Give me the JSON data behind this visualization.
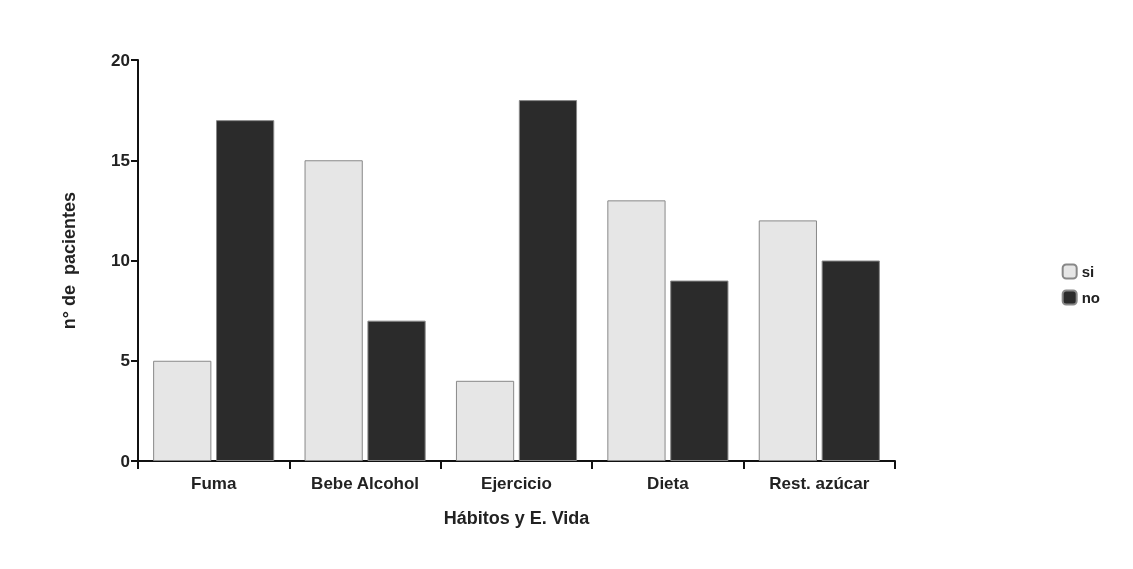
{
  "chart_data": {
    "type": "bar",
    "xlabel": "Hábitos y E. Vida",
    "ylabel": "n° de  pacientes",
    "categories": [
      "Fuma",
      "Bebe Alcohol",
      "Ejercicio",
      "Dieta",
      "Rest. azúcar"
    ],
    "series": [
      {
        "name": "si",
        "color": "#e6e6e6",
        "values": [
          5,
          15,
          4,
          13,
          12
        ]
      },
      {
        "name": "no",
        "color": "#2b2b2b",
        "values": [
          17,
          7,
          18,
          9,
          10
        ]
      }
    ],
    "ylim": [
      0,
      20
    ],
    "yticks": [
      0,
      5,
      10,
      15,
      20
    ],
    "grid": false,
    "legend": "right"
  }
}
